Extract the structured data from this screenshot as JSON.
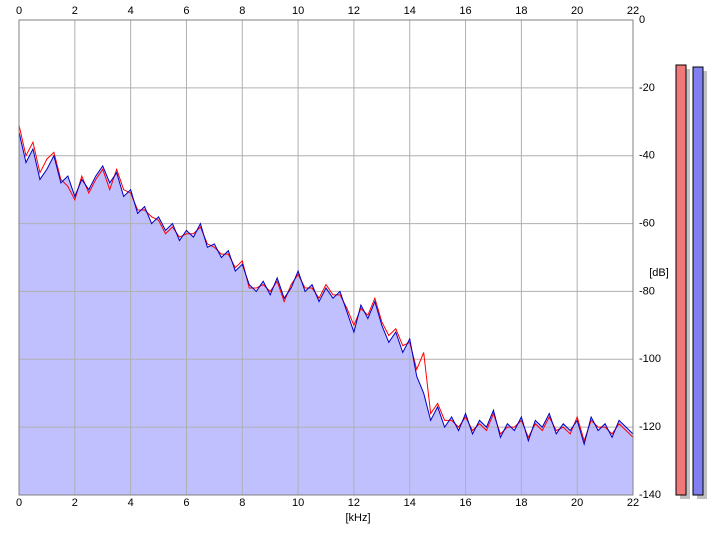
{
  "chart_data": {
    "type": "line",
    "x_label": "[kHz]",
    "y_label": "[dB]",
    "x": [
      0,
      0.25,
      0.5,
      0.75,
      1,
      1.25,
      1.5,
      1.75,
      2,
      2.25,
      2.5,
      2.75,
      3,
      3.25,
      3.5,
      3.75,
      4,
      4.25,
      4.5,
      4.75,
      5,
      5.25,
      5.5,
      5.75,
      6,
      6.25,
      6.5,
      6.75,
      7,
      7.25,
      7.5,
      7.75,
      8,
      8.25,
      8.5,
      8.75,
      9,
      9.25,
      9.5,
      9.75,
      10,
      10.25,
      10.5,
      10.75,
      11,
      11.25,
      11.5,
      11.75,
      12,
      12.25,
      12.5,
      12.75,
      13,
      13.25,
      13.5,
      13.75,
      14,
      14.25,
      14.5,
      14.75,
      15,
      15.25,
      15.5,
      15.75,
      16,
      16.25,
      16.5,
      16.75,
      17,
      17.25,
      17.5,
      17.75,
      18,
      18.25,
      18.5,
      18.75,
      19,
      19.25,
      19.5,
      19.75,
      20,
      20.25,
      20.5,
      20.75,
      21,
      21.25,
      21.5,
      21.75,
      22
    ],
    "series": [
      {
        "color": "#ff0000",
        "values": [
          -31,
          -40,
          -36,
          -45,
          -41,
          -39,
          -47,
          -49,
          -53,
          -46,
          -51,
          -47,
          -44,
          -50,
          -44,
          -50,
          -51,
          -56,
          -56,
          -58,
          -59,
          -63,
          -61,
          -64,
          -63,
          -63,
          -61,
          -66,
          -67,
          -69,
          -69,
          -73,
          -71,
          -79,
          -79,
          -78,
          -80,
          -77,
          -83,
          -78,
          -75,
          -79,
          -79,
          -82,
          -78,
          -81,
          -81,
          -85,
          -90,
          -85,
          -87,
          -82,
          -89,
          -93,
          -91,
          -96,
          -95,
          -103,
          -98,
          -116,
          -113,
          -118,
          -118,
          -120,
          -117,
          -121,
          -119,
          -121,
          -116,
          -122,
          -120,
          -120,
          -118,
          -123,
          -119,
          -121,
          -117,
          -121,
          -120,
          -122,
          -117,
          -124,
          -118,
          -120,
          -120,
          -122,
          -119,
          -121,
          -123
        ]
      },
      {
        "color": "#0000c0",
        "fill": "#c0c0ff",
        "values": [
          -33,
          -42,
          -38,
          -47,
          -44,
          -40,
          -48,
          -46,
          -52,
          -47,
          -50,
          -46,
          -43,
          -48,
          -45,
          -52,
          -50,
          -57,
          -55,
          -60,
          -58,
          -62,
          -60,
          -65,
          -62,
          -64,
          -60,
          -67,
          -66,
          -70,
          -68,
          -74,
          -72,
          -78,
          -80,
          -77,
          -81,
          -76,
          -82,
          -79,
          -74,
          -80,
          -78,
          -83,
          -79,
          -82,
          -80,
          -86,
          -92,
          -84,
          -88,
          -83,
          -90,
          -95,
          -92,
          -98,
          -94,
          -105,
          -110,
          -118,
          -114,
          -120,
          -117,
          -121,
          -116,
          -122,
          -118,
          -120,
          -115,
          -123,
          -119,
          -121,
          -117,
          -124,
          -118,
          -120,
          -116,
          -122,
          -119,
          -121,
          -118,
          -125,
          -117,
          -121,
          -119,
          -123,
          -118,
          -120,
          -122
        ]
      }
    ],
    "xlim": [
      0,
      22
    ],
    "ylim": [
      -140,
      0
    ],
    "xticks": [
      0,
      2,
      4,
      6,
      8,
      10,
      12,
      14,
      16,
      18,
      20,
      22
    ],
    "yticks": [
      0,
      -20,
      -40,
      -60,
      -80,
      -100,
      -120,
      -140
    ],
    "grid": true
  }
}
